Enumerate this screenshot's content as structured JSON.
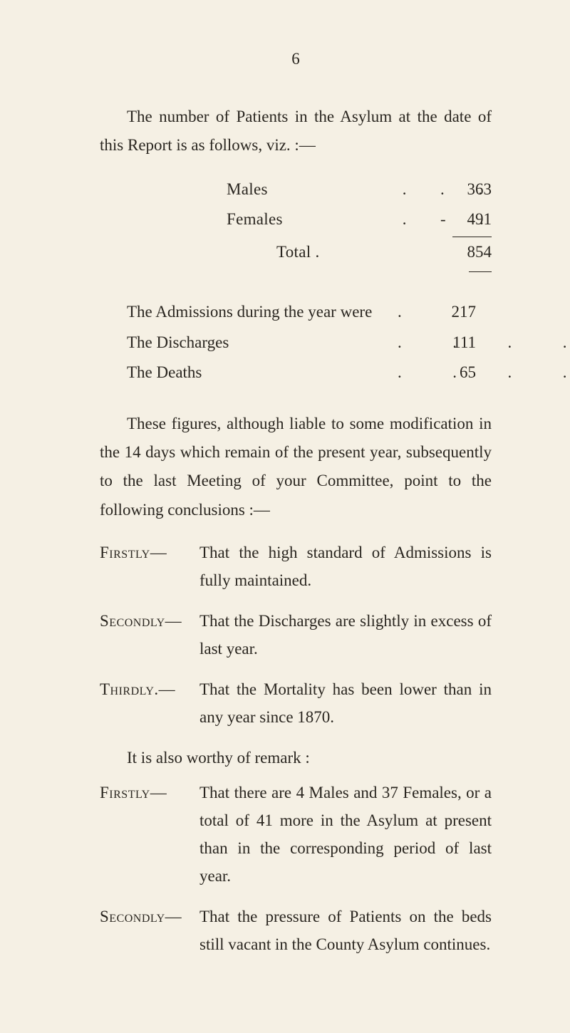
{
  "page_number": "6",
  "intro": "The number of Patients in the Asylum at the date of this Report is as follows, viz. :—",
  "table1": {
    "rows": [
      {
        "label": "Males",
        "dots": ".  .  .",
        "value": "363"
      },
      {
        "label": "Females",
        "dots": ".  -  .",
        "value": "491"
      }
    ],
    "total": {
      "label": "Total  .",
      "value": "854"
    }
  },
  "table2": {
    "rows": [
      {
        "label": "The Admissions during the year were",
        "dots": ".",
        "value": "217"
      },
      {
        "label": "The Discharges",
        "dots": ".  .  .  .  .",
        "value": "111"
      },
      {
        "label": "The Deaths",
        "dots": ".  .  .  .  .  .",
        "value": "65"
      }
    ]
  },
  "para2": "These figures, although liable to some modification in the 14 days which remain of the present year, subsequently to the last Meeting of your Committee, point to the following conclusions :—",
  "list1": [
    {
      "head": "Firstly—",
      "body": "That the high standard of Admissions is fully maintained."
    },
    {
      "head": "Secondly—",
      "body": "That the Discharges are slightly in excess of last year."
    },
    {
      "head": "Thirdly.—",
      "body": "That the Mortality has been lower than in any year since 1870."
    }
  ],
  "midline": "It is also worthy of remark :",
  "list2": [
    {
      "head": "Firstly—",
      "body": "That there are 4 Males and 37 Females, or a total of 41 more in the Asylum at present than in the corresponding period of last year."
    },
    {
      "head": "Secondly—",
      "body": "That the pressure of Patients on the beds still vacant in the County Asylum continues."
    }
  ],
  "colors": {
    "background": "#f5f0e4",
    "text": "#2a2620"
  },
  "typography": {
    "body_fontsize_pt": 17,
    "line_height": 1.75,
    "font_family": "Georgia serif"
  }
}
